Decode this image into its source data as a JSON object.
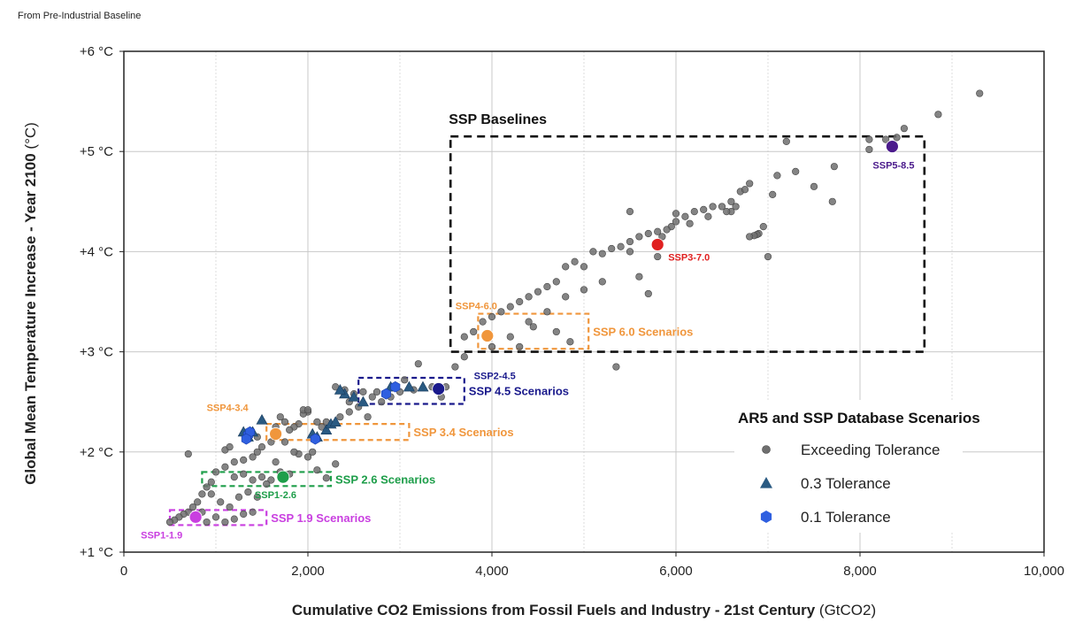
{
  "note": "From Pre-Industrial Baseline",
  "chart_data": {
    "type": "scatter",
    "xlabel": "Cumulative CO2 Emissions from Fossil Fuels and Industry - 21st Century",
    "xlabel_unit": "(GtCO2)",
    "ylabel": "Global Mean Temperature Increase - Year 2100",
    "ylabel_unit": "(°C)",
    "xlim": [
      0,
      10000
    ],
    "ylim": [
      1,
      6
    ],
    "xticks": [
      0,
      2000,
      4000,
      6000,
      8000,
      10000
    ],
    "xtick_labels": [
      "0",
      "2,000",
      "4,000",
      "6,000",
      "8,000",
      "10,000"
    ],
    "yticks": [
      1,
      2,
      3,
      4,
      5,
      6
    ],
    "ytick_labels": [
      "+1 °C",
      "+2 °C",
      "+3 °C",
      "+4 °C",
      "+5 °C",
      "+6 °C"
    ],
    "grid": true,
    "legend": {
      "title": "AR5 and SSP Database Scenarios",
      "position": "lower-right",
      "items": [
        {
          "label": "Exceeding Tolerance",
          "marker": "circle",
          "color": "#808080"
        },
        {
          "label": "0.3 Tolerance",
          "marker": "triangle",
          "color": "#1f4e79"
        },
        {
          "label": "0.1 Tolerance",
          "marker": "hexagon",
          "color": "#2f5fe0"
        }
      ]
    },
    "colors": {
      "exceeding": "#6f6f6f",
      "tol03": "#2a5a82",
      "tol01": "#2f5fe0",
      "baseline_box": "#111111",
      "ssp60": "#f0963c",
      "ssp45": "#1a1a8c",
      "ssp34": "#f0963c",
      "ssp26": "#1e9e4a",
      "ssp19": "#c93fe0"
    },
    "scenario_groups": [
      {
        "label": "SSP Baselines",
        "x_range": [
          3550,
          8700
        ],
        "y_range": [
          3.0,
          5.15
        ],
        "color": "#111111",
        "label_pos": "top-left"
      },
      {
        "label": "SSP 6.0 Scenarios",
        "x_range": [
          3850,
          5050
        ],
        "y_range": [
          3.03,
          3.38
        ],
        "color": "#f0963c",
        "label_pos": "right"
      },
      {
        "label": "SSP 4.5 Scenarios",
        "x_range": [
          2550,
          3700
        ],
        "y_range": [
          2.48,
          2.74
        ],
        "color": "#1a1a8c",
        "label_pos": "right"
      },
      {
        "label": "SSP 3.4 Scenarios",
        "x_range": [
          1550,
          3100
        ],
        "y_range": [
          2.12,
          2.28
        ],
        "color": "#f0963c",
        "label_pos": "right"
      },
      {
        "label": "SSP 2.6 Scenarios",
        "x_range": [
          850,
          2250
        ],
        "y_range": [
          1.66,
          1.8
        ],
        "color": "#1e9e4a",
        "label_pos": "right"
      },
      {
        "label": "SSP 1.9 Scenarios",
        "x_range": [
          500,
          1550
        ],
        "y_range": [
          1.27,
          1.42
        ],
        "color": "#c93fe0",
        "label_pos": "right"
      }
    ],
    "markers": [
      {
        "name": "SSP5-8.5",
        "x": 8350,
        "y": 5.05,
        "color": "#4b1b8c",
        "label_pos": "below"
      },
      {
        "name": "SSP3-7.0",
        "x": 5800,
        "y": 4.07,
        "color": "#e02020",
        "label_pos": "below-right"
      },
      {
        "name": "SSP4-6.0",
        "x": 3950,
        "y": 3.16,
        "color": "#f0963c",
        "label_pos": "above-left"
      },
      {
        "name": "SSP2-4.5",
        "x": 3420,
        "y": 2.63,
        "color": "#1a1a8c",
        "label_pos": "above-right"
      },
      {
        "name": "SSP4-3.4",
        "x": 1650,
        "y": 2.18,
        "color": "#f0963c",
        "label_pos": "above-left"
      },
      {
        "name": "SSP1-2.6",
        "x": 1730,
        "y": 1.75,
        "color": "#1e9e4a",
        "label_pos": "below"
      },
      {
        "name": "SSP1-1.9",
        "x": 780,
        "y": 1.35,
        "color": "#c93fe0",
        "label_pos": "below-left"
      }
    ],
    "series": [
      {
        "name": "Exceeding Tolerance",
        "marker": "circle",
        "points": [
          [
            9300,
            5.58
          ],
          [
            8850,
            5.37
          ],
          [
            8480,
            5.23
          ],
          [
            8400,
            5.14
          ],
          [
            8280,
            5.12
          ],
          [
            8100,
            5.12
          ],
          [
            8100,
            5.02
          ],
          [
            7720,
            4.85
          ],
          [
            7500,
            4.65
          ],
          [
            7200,
            5.1
          ],
          [
            7100,
            4.76
          ],
          [
            7050,
            4.57
          ],
          [
            7000,
            3.95
          ],
          [
            7300,
            4.8
          ],
          [
            7700,
            4.5
          ],
          [
            6950,
            4.25
          ],
          [
            6900,
            4.18
          ],
          [
            6880,
            4.17
          ],
          [
            6850,
            4.16
          ],
          [
            6800,
            4.15
          ],
          [
            6700,
            4.6
          ],
          [
            6650,
            4.45
          ],
          [
            6600,
            4.4
          ],
          [
            6550,
            4.4
          ],
          [
            6500,
            4.45
          ],
          [
            6400,
            4.45
          ],
          [
            6300,
            4.42
          ],
          [
            6200,
            4.4
          ],
          [
            6100,
            4.35
          ],
          [
            6000,
            4.3
          ],
          [
            5950,
            4.25
          ],
          [
            5900,
            4.22
          ],
          [
            5800,
            4.2
          ],
          [
            5700,
            4.18
          ],
          [
            5600,
            4.15
          ],
          [
            5500,
            4.1
          ],
          [
            5400,
            4.05
          ],
          [
            5300,
            4.03
          ],
          [
            5200,
            3.98
          ],
          [
            5100,
            4.0
          ],
          [
            5000,
            3.85
          ],
          [
            4900,
            3.9
          ],
          [
            4800,
            3.85
          ],
          [
            4700,
            3.7
          ],
          [
            4600,
            3.65
          ],
          [
            4500,
            3.6
          ],
          [
            4400,
            3.55
          ],
          [
            4300,
            3.5
          ],
          [
            4200,
            3.45
          ],
          [
            4100,
            3.4
          ],
          [
            4000,
            3.35
          ],
          [
            3900,
            3.3
          ],
          [
            3800,
            3.2
          ],
          [
            3700,
            3.15
          ],
          [
            6800,
            4.68
          ],
          [
            6750,
            4.62
          ],
          [
            6600,
            4.5
          ],
          [
            6350,
            4.35
          ],
          [
            6150,
            4.28
          ],
          [
            5850,
            4.15
          ],
          [
            5500,
            4.0
          ],
          [
            5200,
            3.7
          ],
          [
            5000,
            3.62
          ],
          [
            4800,
            3.55
          ],
          [
            4600,
            3.4
          ],
          [
            4400,
            3.3
          ],
          [
            4200,
            3.15
          ],
          [
            4000,
            3.05
          ],
          [
            3700,
            2.95
          ],
          [
            3600,
            2.85
          ],
          [
            3200,
            2.88
          ],
          [
            3050,
            2.72
          ],
          [
            5600,
            3.75
          ],
          [
            5700,
            3.58
          ],
          [
            5350,
            2.85
          ],
          [
            4450,
            3.25
          ],
          [
            4700,
            3.2
          ],
          [
            4850,
            3.1
          ],
          [
            4300,
            3.05
          ],
          [
            5500,
            4.4
          ],
          [
            5800,
            3.95
          ],
          [
            6000,
            4.38
          ],
          [
            3000,
            2.6
          ],
          [
            2900,
            2.55
          ],
          [
            2800,
            2.5
          ],
          [
            2700,
            2.55
          ],
          [
            2600,
            2.6
          ],
          [
            2500,
            2.58
          ],
          [
            2400,
            2.62
          ],
          [
            2300,
            2.65
          ],
          [
            2450,
            2.4
          ],
          [
            2350,
            2.35
          ],
          [
            2200,
            2.3
          ],
          [
            2100,
            2.3
          ],
          [
            2000,
            2.4
          ],
          [
            1950,
            2.38
          ],
          [
            1900,
            2.28
          ],
          [
            1850,
            2.25
          ],
          [
            1800,
            2.22
          ],
          [
            1750,
            2.3
          ],
          [
            1700,
            2.35
          ],
          [
            1650,
            2.25
          ],
          [
            1600,
            2.1
          ],
          [
            1500,
            2.05
          ],
          [
            1450,
            2.0
          ],
          [
            1400,
            1.95
          ],
          [
            1300,
            1.92
          ],
          [
            1200,
            1.9
          ],
          [
            1100,
            1.85
          ],
          [
            1000,
            1.8
          ],
          [
            950,
            1.7
          ],
          [
            900,
            1.65
          ],
          [
            850,
            1.58
          ],
          [
            800,
            1.5
          ],
          [
            750,
            1.45
          ],
          [
            700,
            1.4
          ],
          [
            650,
            1.38
          ],
          [
            600,
            1.35
          ],
          [
            550,
            1.32
          ],
          [
            500,
            1.3
          ],
          [
            1100,
            2.02
          ],
          [
            1150,
            2.05
          ],
          [
            1200,
            1.75
          ],
          [
            1300,
            1.78
          ],
          [
            1400,
            1.72
          ],
          [
            1500,
            1.75
          ],
          [
            1600,
            1.72
          ],
          [
            1700,
            1.8
          ],
          [
            1800,
            1.78
          ],
          [
            1900,
            1.98
          ],
          [
            2000,
            1.95
          ],
          [
            2050,
            2.0
          ],
          [
            2100,
            1.82
          ],
          [
            2200,
            1.74
          ],
          [
            2300,
            1.88
          ],
          [
            1550,
            1.68
          ],
          [
            1450,
            1.55
          ],
          [
            1350,
            1.6
          ],
          [
            1250,
            1.55
          ],
          [
            1150,
            1.45
          ],
          [
            1050,
            1.5
          ],
          [
            950,
            1.58
          ],
          [
            850,
            1.4
          ],
          [
            900,
            1.3
          ],
          [
            1000,
            1.35
          ],
          [
            1100,
            1.3
          ],
          [
            1200,
            1.33
          ],
          [
            1300,
            1.38
          ],
          [
            1400,
            1.4
          ],
          [
            700,
            1.98
          ],
          [
            1650,
            1.9
          ],
          [
            1750,
            2.1
          ],
          [
            1850,
            2.0
          ],
          [
            2150,
            2.25
          ],
          [
            2450,
            2.5
          ],
          [
            2550,
            2.45
          ],
          [
            2650,
            2.35
          ],
          [
            2750,
            2.6
          ],
          [
            3150,
            2.62
          ],
          [
            3350,
            2.65
          ],
          [
            3500,
            2.65
          ],
          [
            3450,
            2.55
          ],
          [
            1350,
            2.2
          ],
          [
            1450,
            2.15
          ],
          [
            1950,
            2.42
          ],
          [
            2000,
            2.42
          ]
        ]
      },
      {
        "name": "0.3 Tolerance",
        "marker": "triangle",
        "points": [
          [
            1500,
            2.32
          ],
          [
            1300,
            2.2
          ],
          [
            1350,
            2.15
          ],
          [
            2200,
            2.22
          ],
          [
            2250,
            2.28
          ],
          [
            2050,
            2.18
          ],
          [
            2100,
            2.15
          ],
          [
            2300,
            2.3
          ],
          [
            2400,
            2.58
          ],
          [
            2500,
            2.55
          ],
          [
            2600,
            2.5
          ],
          [
            2900,
            2.65
          ],
          [
            3100,
            2.65
          ],
          [
            3250,
            2.65
          ],
          [
            2350,
            2.62
          ],
          [
            1400,
            2.2
          ]
        ]
      },
      {
        "name": "0.1 Tolerance",
        "marker": "hexagon",
        "points": [
          [
            1350,
            2.17
          ],
          [
            1370,
            2.2
          ],
          [
            1330,
            2.13
          ],
          [
            2850,
            2.58
          ],
          [
            2950,
            2.65
          ],
          [
            2080,
            2.13
          ]
        ]
      }
    ]
  }
}
